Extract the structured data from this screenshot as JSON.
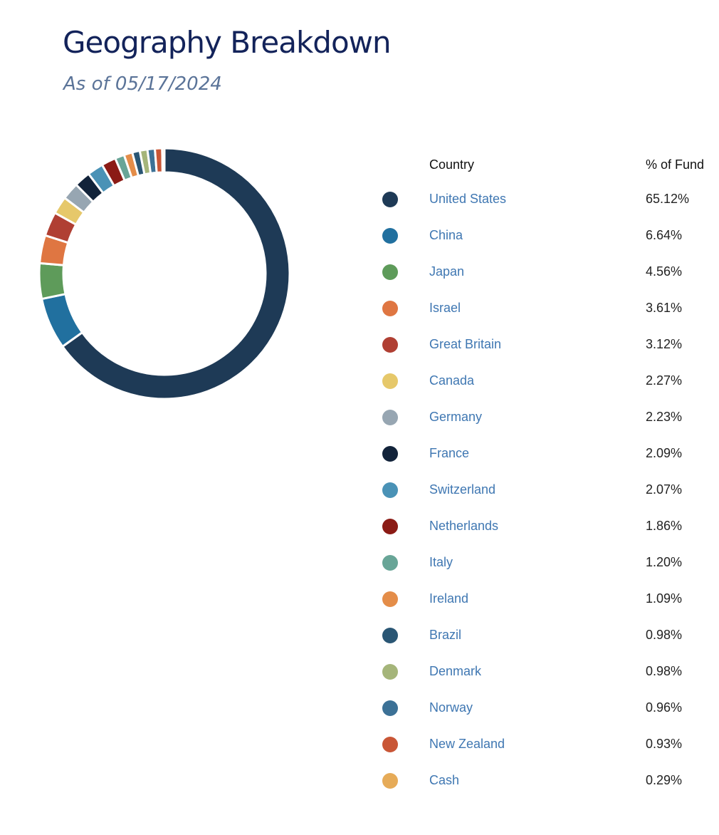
{
  "header": {
    "title": "Geography Breakdown",
    "subtitle": "As of 05/17/2024"
  },
  "table": {
    "col_country": "Country",
    "col_percent": "% of Fund"
  },
  "chart_data": {
    "type": "pie",
    "variant": "donut",
    "value_suffix": "%",
    "categories": [
      "United States",
      "China",
      "Japan",
      "Israel",
      "Great Britain",
      "Canada",
      "Germany",
      "France",
      "Switzerland",
      "Netherlands",
      "Italy",
      "Ireland",
      "Brazil",
      "Denmark",
      "Norway",
      "New Zealand",
      "Cash"
    ],
    "values": [
      65.12,
      6.64,
      4.56,
      3.61,
      3.12,
      2.27,
      2.23,
      2.09,
      2.07,
      1.86,
      1.2,
      1.09,
      0.98,
      0.98,
      0.96,
      0.93,
      0.29
    ],
    "labels": [
      "65.12%",
      "6.64%",
      "4.56%",
      "3.61%",
      "3.12%",
      "2.27%",
      "2.23%",
      "2.09%",
      "2.07%",
      "1.86%",
      "1.20%",
      "1.09%",
      "0.98%",
      "0.98%",
      "0.96%",
      "0.93%",
      "0.29%"
    ],
    "colors": [
      "#1e3a56",
      "#21709f",
      "#5e9b5a",
      "#df7642",
      "#b03f33",
      "#e6c86a",
      "#97a6b2",
      "#12233a",
      "#4a92b6",
      "#8b1b15",
      "#68a597",
      "#e48d49",
      "#2a5674",
      "#a5b57a",
      "#3c7196",
      "#c95636",
      "#e6ab58"
    ],
    "legend": "right"
  }
}
